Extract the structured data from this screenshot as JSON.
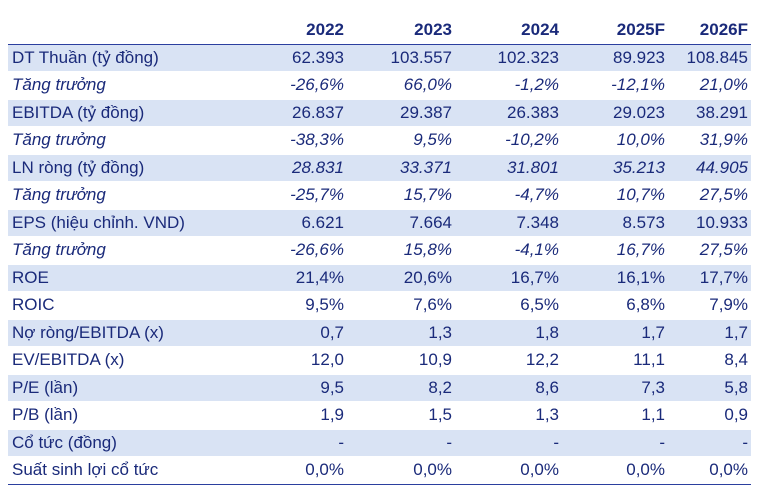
{
  "table": {
    "headers": [
      "",
      "2022",
      "2023",
      "2024",
      "2025F",
      "2026F"
    ],
    "rows": [
      {
        "label": "DT Thuần (tỷ đồng)",
        "values": [
          "62.393",
          "103.557",
          "102.323",
          "89.923",
          "108.845"
        ],
        "style": "shade"
      },
      {
        "label": "Tăng trưởng",
        "values": [
          "-26,6%",
          "66,0%",
          "-1,2%",
          "-12,1%",
          "21,0%"
        ],
        "style": "italic"
      },
      {
        "label": "EBITDA (tỷ đồng)",
        "values": [
          "26.837",
          "29.387",
          "26.383",
          "29.023",
          "38.291"
        ],
        "style": "shade"
      },
      {
        "label": "Tăng trưởng",
        "values": [
          "-38,3%",
          "9,5%",
          "-10,2%",
          "10,0%",
          "31,9%"
        ],
        "style": "italic"
      },
      {
        "label": "LN ròng (tỷ đồng)",
        "values": [
          "28.831",
          "33.371",
          "31.801",
          "35.213",
          "44.905"
        ],
        "style": "shade-italic-values"
      },
      {
        "label": "Tăng trưởng",
        "values": [
          "-25,7%",
          "15,7%",
          "-4,7%",
          "10,7%",
          "27,5%"
        ],
        "style": "italic"
      },
      {
        "label": "EPS (hiệu chỉnh. VND)",
        "values": [
          "6.621",
          "7.664",
          "7.348",
          "8.573",
          "10.933"
        ],
        "style": "shade"
      },
      {
        "label": "Tăng trưởng",
        "values": [
          "-26,6%",
          "15,8%",
          "-4,1%",
          "16,7%",
          "27,5%"
        ],
        "style": "italic"
      },
      {
        "label": "ROE",
        "values": [
          "21,4%",
          "20,6%",
          "16,7%",
          "16,1%",
          "17,7%"
        ],
        "style": "shade"
      },
      {
        "label": "ROIC",
        "values": [
          "9,5%",
          "7,6%",
          "6,5%",
          "6,8%",
          "7,9%"
        ],
        "style": "plain"
      },
      {
        "label": "Nợ ròng/EBITDA (x)",
        "values": [
          "0,7",
          "1,3",
          "1,8",
          "1,7",
          "1,7"
        ],
        "style": "shade"
      },
      {
        "label": "EV/EBITDA (x)",
        "values": [
          "12,0",
          "10,9",
          "12,2",
          "11,1",
          "8,4"
        ],
        "style": "plain"
      },
      {
        "label": "P/E (lần)",
        "values": [
          "9,5",
          "8,2",
          "8,6",
          "7,3",
          "5,8"
        ],
        "style": "shade"
      },
      {
        "label": "P/B (lần)",
        "values": [
          "1,9",
          "1,5",
          "1,3",
          "1,1",
          "0,9"
        ],
        "style": "plain"
      },
      {
        "label": "Cổ tức (đồng)",
        "values": [
          "-",
          "-",
          "-",
          "-",
          "-"
        ],
        "style": "shade"
      },
      {
        "label": "Suất sinh lợi cổ tức",
        "values": [
          "0,0%",
          "0,0%",
          "0,0%",
          "0,0%",
          "0,0%"
        ],
        "style": "plain"
      }
    ]
  },
  "colors": {
    "text": "#1a2a7a",
    "shade": "#d9e3f4",
    "rule": "#2b3f9f"
  }
}
